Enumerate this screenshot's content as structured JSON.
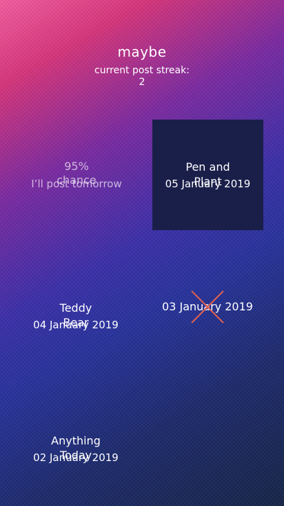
{
  "header": {
    "title": "maybe",
    "streak_label": "current post streak:",
    "streak_value": "2"
  },
  "forecast": {
    "percent": "95%",
    "percent_suffix": "chance",
    "text": "I’ll post tomorrow"
  },
  "posts": [
    {
      "title": "Pen and Plant",
      "date": "05 January 2019",
      "selected": true
    },
    {
      "title": "",
      "date": "03 January 2019",
      "missed": true
    },
    {
      "title": "Teddy Bear",
      "date": "04 January 2019"
    },
    {
      "title": "Anything Today",
      "date": "02 January 2019"
    }
  ],
  "colors": {
    "selected_tile": "#1a1f4a",
    "missed_cross": "#e0604f"
  }
}
